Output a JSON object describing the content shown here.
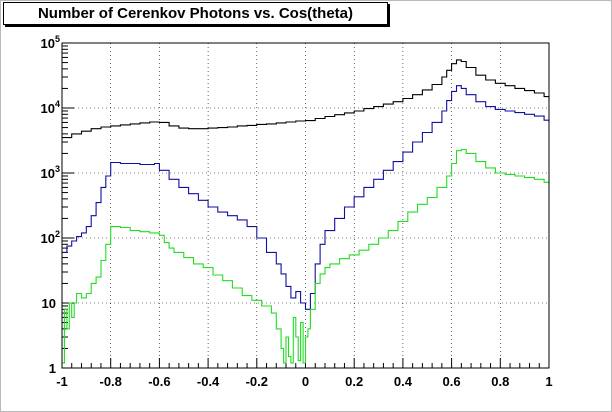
{
  "chart_data": {
    "type": "line",
    "title": "Number of Cerenkov Photons vs. Cos(theta)",
    "xlabel": "",
    "ylabel": "",
    "xlim": [
      -1,
      1
    ],
    "ylim": [
      1,
      100000
    ],
    "y_scale": "log",
    "grid": true,
    "x_ticks": [
      -1,
      -0.8,
      -0.6,
      -0.4,
      -0.2,
      0,
      0.2,
      0.4,
      0.6,
      0.8,
      1
    ],
    "x_tick_labels": [
      "-1",
      "-0.8",
      "-0.6",
      "-0.4",
      "-0.2",
      "0",
      "0.2",
      "0.4",
      "0.6",
      "0.8",
      "1"
    ],
    "y_ticks": [
      {
        "value": 1,
        "base": "1",
        "exp": ""
      },
      {
        "value": 10,
        "base": "10",
        "exp": ""
      },
      {
        "value": 100,
        "base": "10",
        "exp": "2"
      },
      {
        "value": 1000,
        "base": "10",
        "exp": "3"
      },
      {
        "value": 10000,
        "base": "10",
        "exp": "4"
      },
      {
        "value": 100000,
        "base": "10",
        "exp": "5"
      }
    ],
    "series": [
      {
        "color": "#000000",
        "x": [
          -1.0,
          -0.96,
          -0.92,
          -0.88,
          -0.84,
          -0.8,
          -0.76,
          -0.72,
          -0.68,
          -0.64,
          -0.6,
          -0.56,
          -0.52,
          -0.48,
          -0.44,
          -0.4,
          -0.36,
          -0.32,
          -0.28,
          -0.24,
          -0.2,
          -0.16,
          -0.12,
          -0.08,
          -0.04,
          0.0,
          0.04,
          0.08,
          0.12,
          0.16,
          0.2,
          0.24,
          0.28,
          0.32,
          0.36,
          0.4,
          0.44,
          0.48,
          0.52,
          0.56,
          0.58,
          0.6,
          0.62,
          0.64,
          0.66,
          0.7,
          0.74,
          0.78,
          0.82,
          0.86,
          0.9,
          0.94,
          0.98,
          1.0
        ],
        "y": [
          3500,
          4000,
          4400,
          4800,
          5100,
          5300,
          5500,
          5700,
          5900,
          6100,
          6000,
          5300,
          4900,
          4800,
          4800,
          4900,
          5000,
          5100,
          5300,
          5400,
          5600,
          5700,
          5900,
          6100,
          6300,
          6400,
          6900,
          7400,
          7900,
          8400,
          9000,
          9800,
          10500,
          11500,
          12500,
          14000,
          16000,
          19000,
          23000,
          30000,
          38000,
          48000,
          55000,
          52000,
          42000,
          32000,
          27000,
          24000,
          22000,
          20000,
          18500,
          17000,
          15000,
          13000
        ]
      },
      {
        "color": "#1010a0",
        "x": [
          -1.0,
          -0.98,
          -0.96,
          -0.94,
          -0.92,
          -0.9,
          -0.88,
          -0.86,
          -0.84,
          -0.82,
          -0.8,
          -0.76,
          -0.72,
          -0.68,
          -0.64,
          -0.62,
          -0.6,
          -0.56,
          -0.52,
          -0.48,
          -0.44,
          -0.4,
          -0.36,
          -0.32,
          -0.28,
          -0.24,
          -0.2,
          -0.16,
          -0.12,
          -0.1,
          -0.08,
          -0.06,
          -0.04,
          -0.02,
          0.0,
          0.02,
          0.04,
          0.06,
          0.08,
          0.12,
          0.16,
          0.2,
          0.24,
          0.28,
          0.32,
          0.36,
          0.4,
          0.44,
          0.48,
          0.52,
          0.56,
          0.58,
          0.6,
          0.62,
          0.64,
          0.66,
          0.7,
          0.74,
          0.78,
          0.82,
          0.86,
          0.9,
          0.94,
          0.98,
          1.0
        ],
        "y": [
          60,
          75,
          90,
          105,
          120,
          150,
          220,
          350,
          600,
          900,
          1450,
          1400,
          1400,
          1350,
          1350,
          1400,
          1100,
          800,
          600,
          480,
          380,
          300,
          250,
          220,
          190,
          150,
          100,
          60,
          40,
          28,
          18,
          12,
          15,
          10,
          8,
          14,
          40,
          80,
          130,
          200,
          300,
          430,
          600,
          800,
          1100,
          1500,
          2100,
          3000,
          4200,
          6000,
          9000,
          13000,
          18000,
          22000,
          20000,
          16000,
          12500,
          10500,
          9500,
          9000,
          8500,
          8000,
          7500,
          6500,
          6000
        ]
      },
      {
        "color": "#22dd22",
        "x": [
          -1.0,
          -0.99,
          -0.98,
          -0.97,
          -0.96,
          -0.95,
          -0.94,
          -0.92,
          -0.9,
          -0.88,
          -0.86,
          -0.84,
          -0.82,
          -0.8,
          -0.76,
          -0.72,
          -0.68,
          -0.64,
          -0.6,
          -0.58,
          -0.56,
          -0.54,
          -0.5,
          -0.46,
          -0.42,
          -0.38,
          -0.34,
          -0.3,
          -0.26,
          -0.22,
          -0.18,
          -0.14,
          -0.12,
          -0.1,
          -0.09,
          -0.08,
          -0.07,
          -0.06,
          -0.05,
          -0.04,
          -0.03,
          -0.02,
          -0.01,
          0.0,
          0.01,
          0.02,
          0.04,
          0.06,
          0.08,
          0.1,
          0.14,
          0.18,
          0.22,
          0.26,
          0.3,
          0.34,
          0.38,
          0.42,
          0.46,
          0.5,
          0.54,
          0.58,
          0.6,
          0.62,
          0.64,
          0.66,
          0.7,
          0.74,
          0.78,
          0.82,
          0.86,
          0.9,
          0.94,
          0.98,
          1.0
        ],
        "y": [
          1.2,
          8,
          4,
          10,
          6,
          10,
          14,
          12,
          14,
          20,
          25,
          45,
          80,
          150,
          145,
          130,
          125,
          120,
          110,
          85,
          70,
          60,
          50,
          40,
          35,
          27,
          22,
          17,
          13,
          11,
          9,
          7,
          4,
          2,
          1.2,
          3,
          1.5,
          1.2,
          6,
          3,
          1.3,
          5,
          1.2,
          3,
          4,
          8,
          20,
          28,
          35,
          40,
          48,
          55,
          65,
          80,
          100,
          130,
          180,
          250,
          330,
          420,
          600,
          900,
          1400,
          2200,
          2300,
          2000,
          1500,
          1200,
          1000,
          950,
          900,
          850,
          800,
          720,
          680
        ]
      }
    ]
  }
}
